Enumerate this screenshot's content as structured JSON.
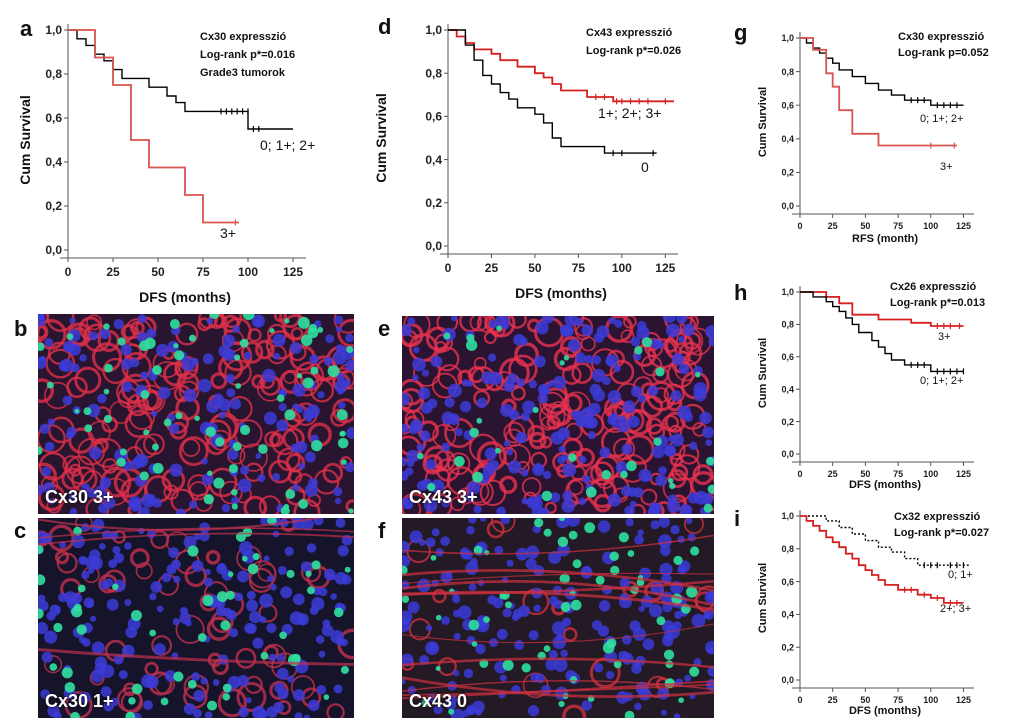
{
  "panel_letters": {
    "a": "a",
    "b": "b",
    "c": "c",
    "d": "d",
    "e": "e",
    "f": "f",
    "g": "g",
    "h": "h",
    "i": "i"
  },
  "micrographs": [
    {
      "id": "b",
      "label": "Cx30 3+"
    },
    {
      "id": "c",
      "label": "Cx30 1+"
    },
    {
      "id": "e",
      "label": "Cx43 3+"
    },
    {
      "id": "f",
      "label": "Cx43 0"
    }
  ],
  "colors": {
    "black": "#000000",
    "red": "#d62020",
    "light_red": "#d9534f"
  },
  "chart_data": [
    {
      "id": "a",
      "type": "line",
      "annotations": [
        "Cx30 expresszió",
        "Log-rank p*=0.016",
        "Grade3 tumorok"
      ],
      "xlabel": "DFS (months)",
      "ylabel": "Cum Survival",
      "xlim": [
        0,
        130
      ],
      "ylim": [
        0,
        1
      ],
      "xticks": [
        "0",
        "25",
        "50",
        "75",
        "100",
        "125"
      ],
      "yticks": [
        "0,0",
        "0,2",
        "0,4",
        "0,6",
        "0,8",
        "1,0"
      ],
      "series": [
        {
          "name": "0; 1+; 2+",
          "color": "#000000",
          "dashed": false,
          "x": [
            0,
            5,
            5,
            10,
            10,
            15,
            15,
            20,
            20,
            25,
            25,
            30,
            30,
            45,
            45,
            55,
            55,
            60,
            60,
            65,
            65,
            100,
            100,
            125
          ],
          "y": [
            1.0,
            1.0,
            0.96,
            0.96,
            0.93,
            0.93,
            0.89,
            0.89,
            0.86,
            0.86,
            0.82,
            0.82,
            0.78,
            0.78,
            0.74,
            0.74,
            0.7,
            0.7,
            0.67,
            0.67,
            0.63,
            0.63,
            0.55,
            0.55
          ],
          "censored": [
            [
              85,
              0.63
            ],
            [
              88,
              0.63
            ],
            [
              91,
              0.63
            ],
            [
              94,
              0.63
            ],
            [
              97,
              0.63
            ],
            [
              100,
              0.63
            ],
            [
              103,
              0.55
            ],
            [
              106,
              0.55
            ]
          ]
        },
        {
          "name": "3+",
          "color": "#d9534f",
          "dashed": false,
          "x": [
            0,
            15,
            15,
            25,
            25,
            35,
            35,
            45,
            45,
            65,
            65,
            75,
            75,
            85,
            85,
            95
          ],
          "y": [
            1.0,
            1.0,
            0.875,
            0.875,
            0.75,
            0.75,
            0.5,
            0.5,
            0.375,
            0.375,
            0.25,
            0.25,
            0.125,
            0.125,
            0.125,
            0.125
          ],
          "censored": [
            [
              93,
              0.125
            ]
          ]
        }
      ]
    },
    {
      "id": "d",
      "type": "line",
      "annotations": [
        "Cx43 expresszió",
        "Log-rank p*=0.026"
      ],
      "xlabel": "DFS (months)",
      "ylabel": "Cum Survival",
      "xlim": [
        0,
        130
      ],
      "ylim": [
        0,
        1
      ],
      "xticks": [
        "0",
        "25",
        "50",
        "75",
        "100",
        "125"
      ],
      "yticks": [
        "0,0",
        "0,2",
        "0,4",
        "0,6",
        "0,8",
        "1,0"
      ],
      "series": [
        {
          "name": "1+; 2+; 3+",
          "color": "#d62020",
          "dashed": false,
          "x": [
            0,
            5,
            5,
            10,
            10,
            15,
            15,
            25,
            25,
            30,
            30,
            40,
            40,
            50,
            50,
            55,
            55,
            60,
            60,
            65,
            65,
            80,
            80,
            95,
            95,
            120,
            120,
            130
          ],
          "y": [
            1.0,
            1.0,
            0.97,
            0.97,
            0.94,
            0.94,
            0.91,
            0.91,
            0.89,
            0.89,
            0.86,
            0.86,
            0.83,
            0.83,
            0.8,
            0.8,
            0.78,
            0.78,
            0.75,
            0.75,
            0.72,
            0.72,
            0.69,
            0.69,
            0.67,
            0.67,
            0.67,
            0.67
          ],
          "censored": [
            [
              85,
              0.69
            ],
            [
              90,
              0.69
            ],
            [
              97,
              0.67
            ],
            [
              100,
              0.67
            ],
            [
              105,
              0.67
            ],
            [
              110,
              0.67
            ],
            [
              115,
              0.67
            ],
            [
              125,
              0.67
            ]
          ]
        },
        {
          "name": "0",
          "color": "#000000",
          "dashed": false,
          "x": [
            0,
            10,
            10,
            15,
            15,
            20,
            20,
            25,
            25,
            30,
            30,
            35,
            35,
            40,
            40,
            50,
            50,
            55,
            55,
            60,
            60,
            65,
            65,
            90,
            90,
            120
          ],
          "y": [
            1.0,
            1.0,
            0.93,
            0.93,
            0.86,
            0.86,
            0.79,
            0.79,
            0.75,
            0.75,
            0.71,
            0.71,
            0.68,
            0.68,
            0.64,
            0.64,
            0.61,
            0.61,
            0.57,
            0.57,
            0.5,
            0.5,
            0.46,
            0.46,
            0.43,
            0.43
          ],
          "censored": [
            [
              95,
              0.43
            ],
            [
              100,
              0.43
            ],
            [
              118,
              0.43
            ]
          ]
        }
      ]
    },
    {
      "id": "g",
      "type": "line",
      "annotations": [
        "Cx30 expresszió",
        "Log-rank p=0.052"
      ],
      "xlabel": "RFS (month)",
      "ylabel": "Cum Survival",
      "xlim": [
        0,
        130
      ],
      "ylim": [
        0,
        1
      ],
      "xticks": [
        "0",
        "25",
        "50",
        "75",
        "100",
        "125"
      ],
      "yticks": [
        "0,0",
        "0,2",
        "0,4",
        "0,6",
        "0,8",
        "1,0"
      ],
      "series": [
        {
          "name": "0; 1+; 2+",
          "color": "#000000",
          "dashed": false,
          "x": [
            0,
            5,
            5,
            10,
            10,
            15,
            15,
            20,
            20,
            25,
            25,
            30,
            30,
            40,
            40,
            50,
            50,
            60,
            60,
            70,
            70,
            80,
            80,
            100,
            100,
            125
          ],
          "y": [
            1.0,
            1.0,
            0.97,
            0.97,
            0.94,
            0.94,
            0.91,
            0.91,
            0.88,
            0.88,
            0.85,
            0.85,
            0.81,
            0.81,
            0.77,
            0.77,
            0.73,
            0.73,
            0.69,
            0.69,
            0.66,
            0.66,
            0.63,
            0.63,
            0.6,
            0.6
          ],
          "censored": [
            [
              85,
              0.63
            ],
            [
              90,
              0.63
            ],
            [
              95,
              0.63
            ],
            [
              105,
              0.6
            ],
            [
              110,
              0.6
            ],
            [
              115,
              0.6
            ],
            [
              120,
              0.6
            ]
          ]
        },
        {
          "name": "3+",
          "color": "#d9534f",
          "dashed": false,
          "x": [
            0,
            10,
            10,
            20,
            20,
            25,
            25,
            30,
            30,
            40,
            40,
            60,
            60,
            80,
            80,
            120
          ],
          "y": [
            1.0,
            1.0,
            0.93,
            0.93,
            0.79,
            0.79,
            0.71,
            0.71,
            0.57,
            0.57,
            0.43,
            0.43,
            0.36,
            0.36,
            0.36,
            0.36
          ],
          "censored": [
            [
              100,
              0.36
            ],
            [
              118,
              0.36
            ]
          ]
        }
      ]
    },
    {
      "id": "h",
      "type": "line",
      "annotations": [
        "Cx26 expresszió",
        "Log-rank p*=0.013"
      ],
      "xlabel": "DFS (months)",
      "ylabel": "Cum Survival",
      "xlim": [
        0,
        130
      ],
      "ylim": [
        0,
        1
      ],
      "xticks": [
        "0",
        "25",
        "50",
        "75",
        "100",
        "125"
      ],
      "yticks": [
        "0,0",
        "0,2",
        "0,4",
        "0,6",
        "0,8",
        "1,0"
      ],
      "series": [
        {
          "name": "3+",
          "color": "#d62020",
          "dashed": false,
          "x": [
            0,
            20,
            20,
            30,
            30,
            40,
            40,
            60,
            60,
            85,
            85,
            100,
            100,
            125
          ],
          "y": [
            1.0,
            1.0,
            0.97,
            0.97,
            0.93,
            0.93,
            0.86,
            0.86,
            0.83,
            0.83,
            0.81,
            0.81,
            0.79,
            0.79
          ],
          "censored": [
            [
              105,
              0.79
            ],
            [
              110,
              0.79
            ],
            [
              115,
              0.79
            ],
            [
              122,
              0.79
            ]
          ]
        },
        {
          "name": "0; 1+; 2+",
          "color": "#000000",
          "dashed": false,
          "x": [
            0,
            10,
            10,
            20,
            20,
            25,
            25,
            30,
            30,
            35,
            35,
            40,
            40,
            45,
            45,
            55,
            55,
            60,
            60,
            65,
            65,
            70,
            70,
            80,
            80,
            100,
            100,
            125
          ],
          "y": [
            1.0,
            1.0,
            0.97,
            0.97,
            0.94,
            0.94,
            0.91,
            0.91,
            0.88,
            0.88,
            0.84,
            0.84,
            0.8,
            0.8,
            0.75,
            0.75,
            0.7,
            0.7,
            0.66,
            0.66,
            0.62,
            0.62,
            0.58,
            0.58,
            0.55,
            0.55,
            0.51,
            0.51
          ],
          "censored": [
            [
              85,
              0.55
            ],
            [
              90,
              0.55
            ],
            [
              95,
              0.55
            ],
            [
              105,
              0.51
            ],
            [
              110,
              0.51
            ],
            [
              115,
              0.51
            ],
            [
              120,
              0.51
            ],
            [
              125,
              0.51
            ]
          ]
        }
      ]
    },
    {
      "id": "i",
      "type": "line",
      "annotations": [
        "Cx32 expresszió",
        "Log-rank p*=0.027"
      ],
      "xlabel": "DFS (months)",
      "ylabel": "Cum Survival",
      "xlim": [
        0,
        130
      ],
      "ylim": [
        0,
        1
      ],
      "xticks": [
        "0",
        "25",
        "50",
        "75",
        "100",
        "125"
      ],
      "yticks": [
        "0,0",
        "0,2",
        "0,4",
        "0,6",
        "0,8",
        "1,0"
      ],
      "series": [
        {
          "name": "0; 1+",
          "color": "#000000",
          "dashed": true,
          "x": [
            0,
            20,
            20,
            30,
            30,
            40,
            40,
            50,
            50,
            60,
            60,
            70,
            70,
            80,
            80,
            90,
            90,
            110,
            110,
            130
          ],
          "y": [
            1.0,
            1.0,
            0.97,
            0.97,
            0.93,
            0.93,
            0.89,
            0.89,
            0.85,
            0.85,
            0.81,
            0.81,
            0.78,
            0.78,
            0.74,
            0.74,
            0.7,
            0.7,
            0.7,
            0.7
          ],
          "censored": [
            [
              95,
              0.7
            ],
            [
              100,
              0.7
            ],
            [
              105,
              0.7
            ],
            [
              115,
              0.7
            ],
            [
              120,
              0.7
            ],
            [
              125,
              0.7
            ]
          ]
        },
        {
          "name": "2+; 3+",
          "color": "#d62020",
          "dashed": false,
          "x": [
            0,
            5,
            5,
            10,
            10,
            15,
            15,
            20,
            20,
            25,
            25,
            30,
            30,
            35,
            35,
            40,
            40,
            45,
            45,
            50,
            50,
            55,
            55,
            60,
            60,
            65,
            65,
            75,
            75,
            90,
            90,
            100,
            100,
            110,
            110,
            125
          ],
          "y": [
            1.0,
            1.0,
            0.97,
            0.97,
            0.94,
            0.94,
            0.91,
            0.91,
            0.87,
            0.87,
            0.84,
            0.84,
            0.81,
            0.81,
            0.77,
            0.77,
            0.74,
            0.74,
            0.7,
            0.7,
            0.67,
            0.67,
            0.64,
            0.64,
            0.61,
            0.61,
            0.58,
            0.58,
            0.55,
            0.55,
            0.52,
            0.52,
            0.5,
            0.5,
            0.47,
            0.47
          ],
          "censored": [
            [
              80,
              0.55
            ],
            [
              85,
              0.55
            ],
            [
              95,
              0.52
            ],
            [
              105,
              0.5
            ],
            [
              115,
              0.47
            ],
            [
              120,
              0.47
            ]
          ]
        }
      ]
    }
  ]
}
